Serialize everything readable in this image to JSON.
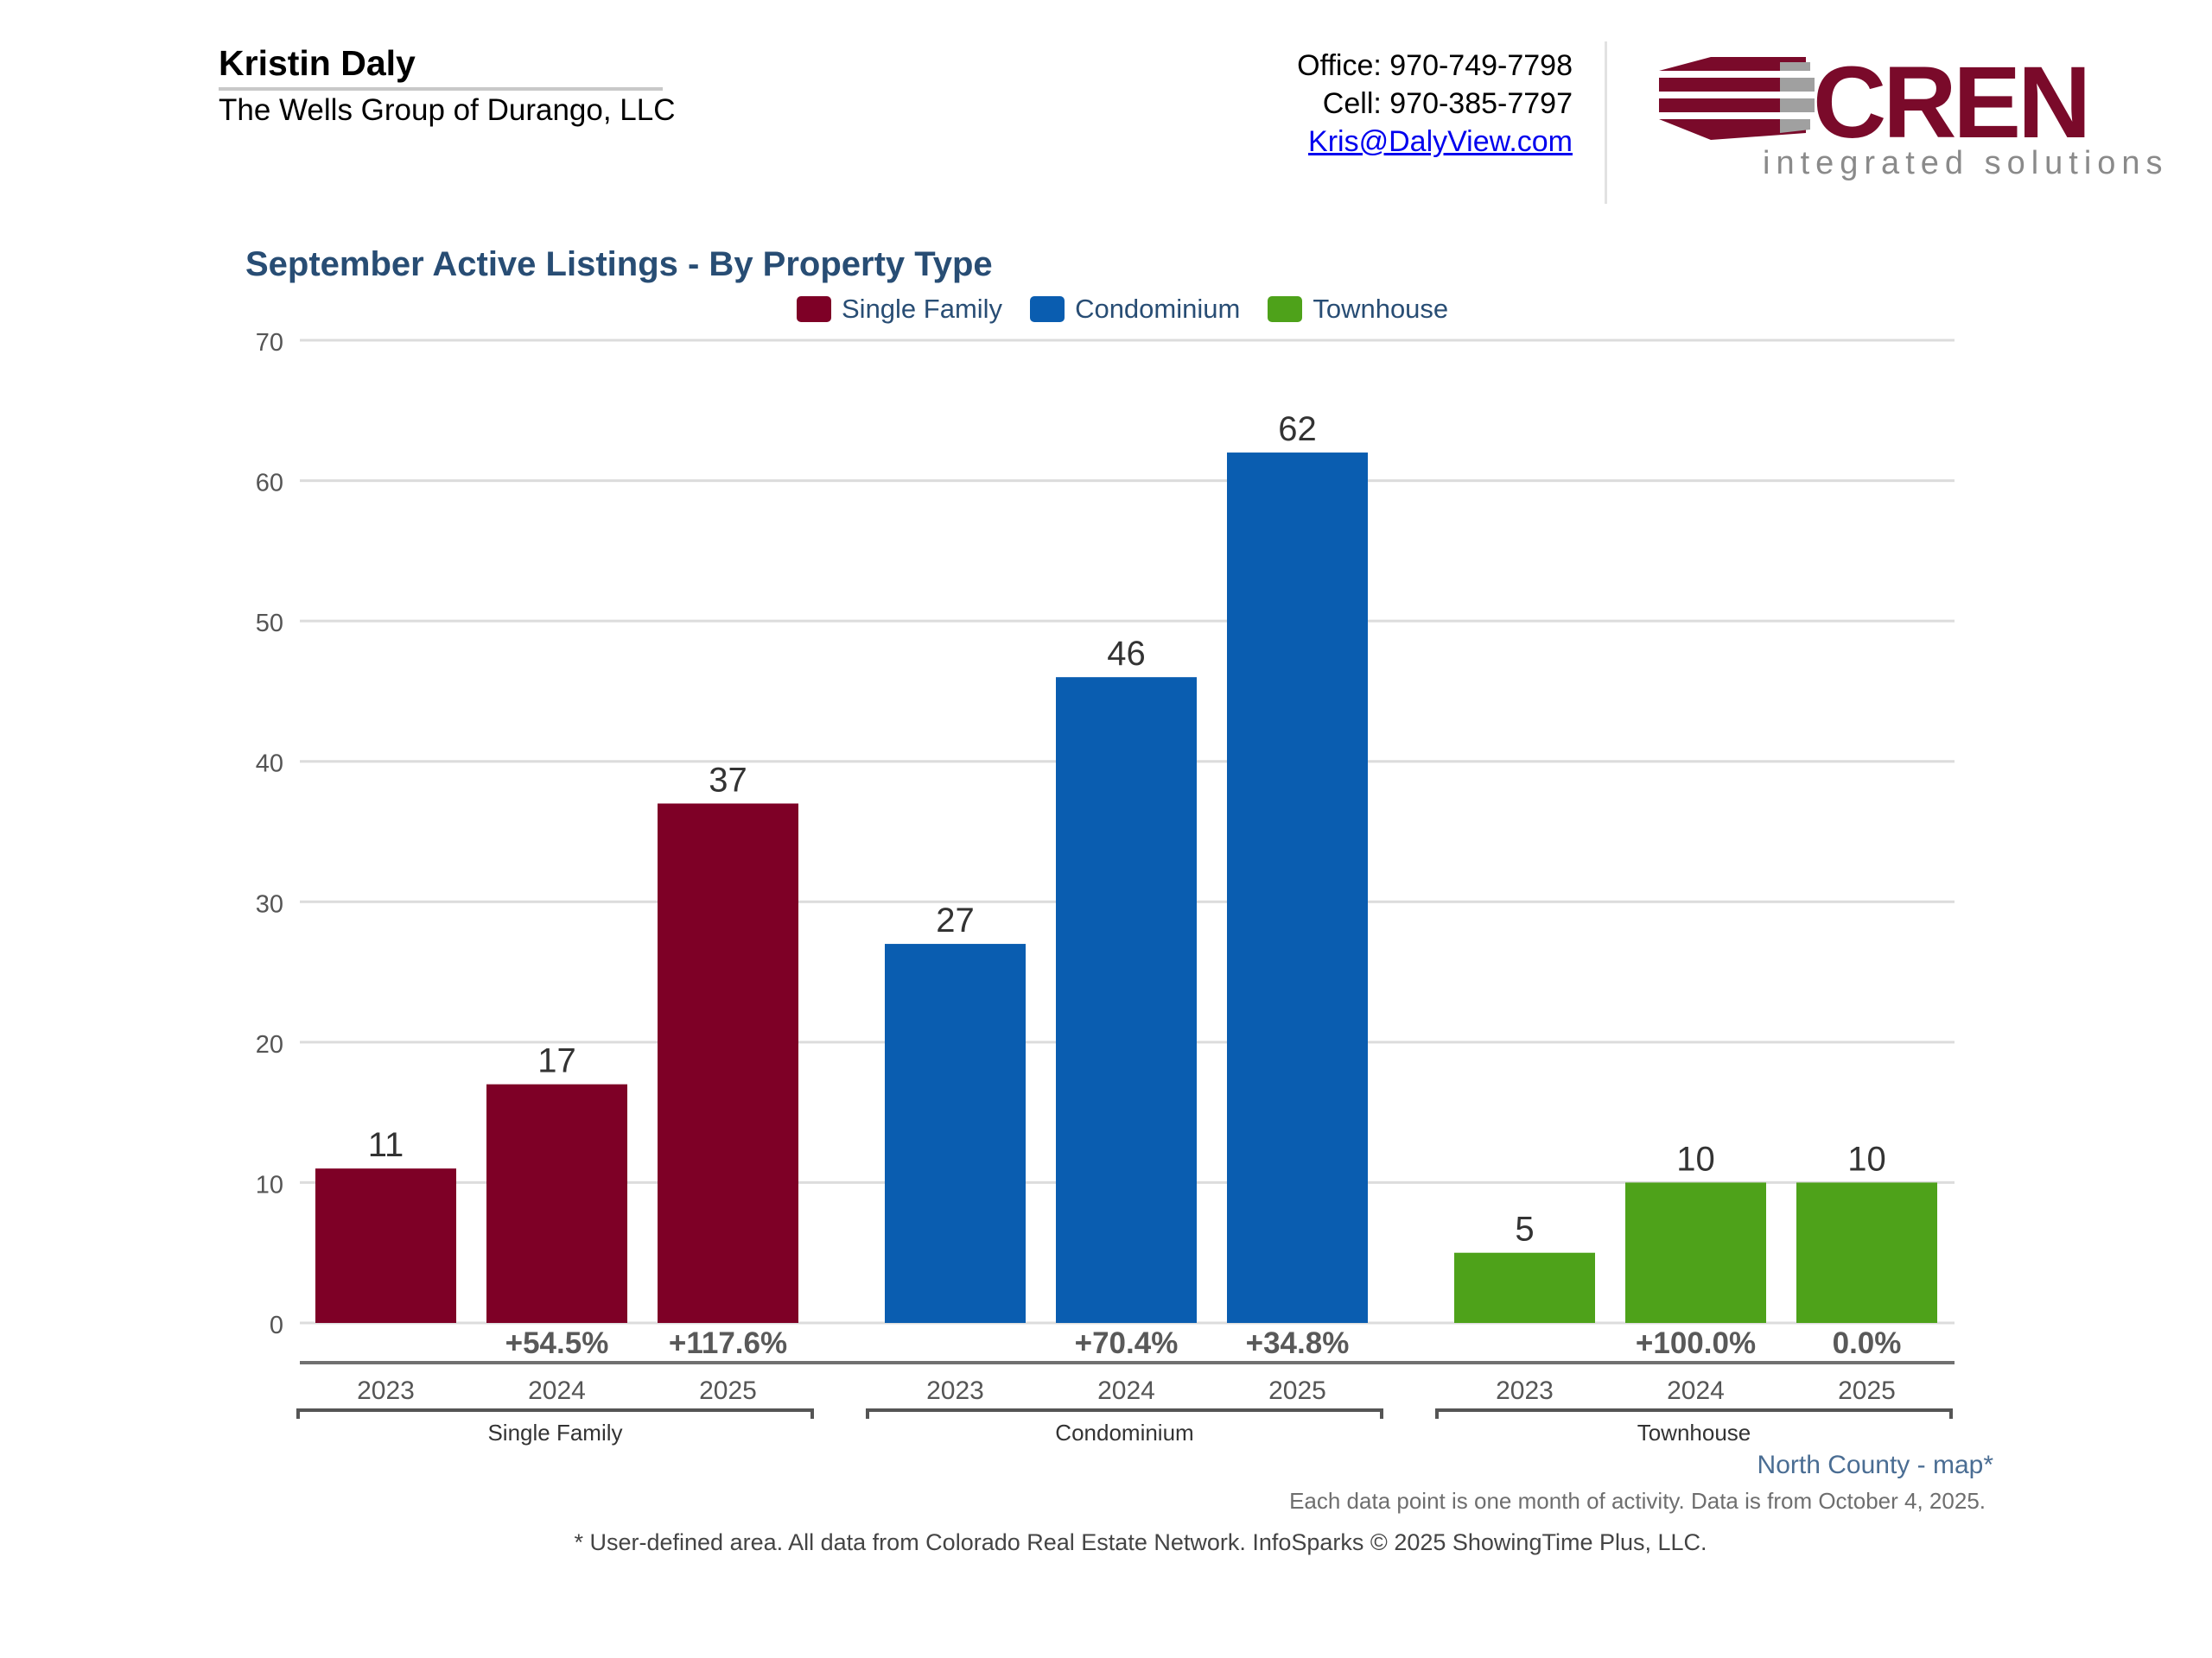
{
  "header": {
    "agent_name": "Kristin Daly",
    "agent_company": "The Wells Group of Durango, LLC",
    "office": "Office: 970-749-7798",
    "cell": "Cell: 970-385-7797",
    "email": "Kris@DalyView.com"
  },
  "logo": {
    "name": "CREN",
    "tagline": "integrated solutions",
    "color": "#7a0a2a"
  },
  "chart_data": {
    "type": "bar",
    "title": "September Active Listings - By Property Type",
    "ylim": [
      0,
      70
    ],
    "yticks": [
      "0",
      "10",
      "20",
      "30",
      "40",
      "50",
      "60",
      "70"
    ],
    "legend": [
      "Single Family",
      "Condominium",
      "Townhouse"
    ],
    "groups": [
      {
        "name": "Single Family",
        "color": "#7e0026",
        "bars": [
          {
            "year": "2023",
            "value": 11,
            "label": "11",
            "change": ""
          },
          {
            "year": "2024",
            "value": 17,
            "label": "17",
            "change": "+54.5%"
          },
          {
            "year": "2025",
            "value": 37,
            "label": "37",
            "change": "+117.6%"
          }
        ]
      },
      {
        "name": "Condominium",
        "color": "#0a5db0",
        "bars": [
          {
            "year": "2023",
            "value": 27,
            "label": "27",
            "change": ""
          },
          {
            "year": "2024",
            "value": 46,
            "label": "46",
            "change": "+70.4%"
          },
          {
            "year": "2025",
            "value": 62,
            "label": "62",
            "change": "+34.8%"
          }
        ]
      },
      {
        "name": "Townhouse",
        "color": "#4ea21a",
        "bars": [
          {
            "year": "2023",
            "value": 5,
            "label": "5",
            "change": ""
          },
          {
            "year": "2024",
            "value": 10,
            "label": "10",
            "change": "+100.0%"
          },
          {
            "year": "2025",
            "value": 10,
            "label": "10",
            "change": "0.0%"
          }
        ]
      }
    ]
  },
  "notes": {
    "area_link": "North County - map*",
    "data_note": "Each data point is one month of activity. Data is from October 4, 2025.",
    "footer": "* User-defined area. All data from Colorado Real Estate Network. InfoSparks © 2025 ShowingTime Plus, LLC."
  }
}
